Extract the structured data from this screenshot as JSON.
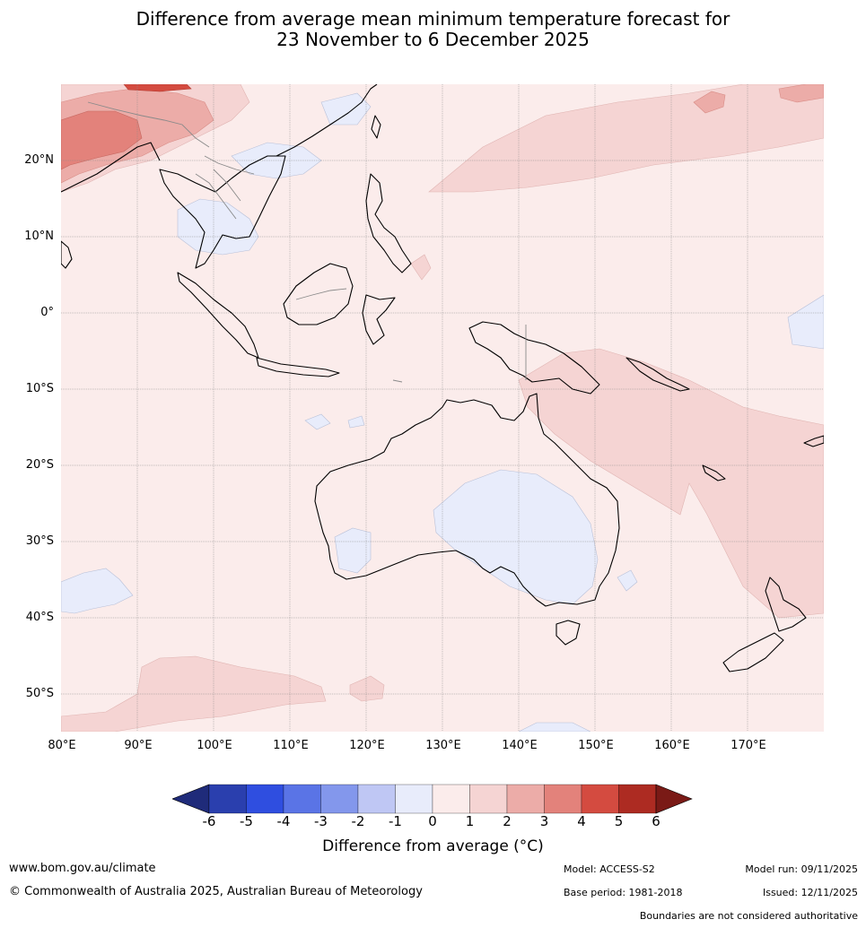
{
  "title_line1": "Difference from average mean minimum temperature forecast for",
  "title_line2": "23 November to 6 December 2025",
  "map": {
    "lat_labels": [
      "20°N",
      "10°N",
      "0°",
      "10°S",
      "20°S",
      "30°S",
      "40°S",
      "50°S"
    ],
    "lon_labels": [
      "80°E",
      "90°E",
      "100°E",
      "110°E",
      "120°E",
      "130°E",
      "140°E",
      "150°E",
      "160°E",
      "170°E"
    ],
    "lon_range": [
      80,
      180
    ],
    "lat_range": [
      -55,
      30
    ],
    "colors": {
      "land_outline": "#000000",
      "border": "#8a8a8a",
      "grid": "#888888",
      "bin_0_1": "#fbeceb",
      "bin_1_2": "#f5d4d3",
      "bin_2_3": "#ecaca8",
      "bin_3_4": "#e3827b",
      "bin_4_5": "#d44b40",
      "bin_m1_0": "#e8ecfb"
    }
  },
  "colorbar": {
    "ticks": [
      "-6",
      "-5",
      "-4",
      "-3",
      "-2",
      "-1",
      "0",
      "1",
      "2",
      "3",
      "4",
      "5",
      "6"
    ],
    "colors": [
      "#1f2b7a",
      "#2a3fae",
      "#2f4ee0",
      "#5a74e6",
      "#8397ec",
      "#bfc7f4",
      "#e8ecfb",
      "#fbeceb",
      "#f5d4d3",
      "#ecaca8",
      "#e3827b",
      "#d44b40",
      "#ad2b22",
      "#7a1a16"
    ],
    "label": "Difference from average (°C)"
  },
  "footer": {
    "website": "www.bom.gov.au/climate",
    "copyright": "© Commonwealth of Australia 2025, Australian Bureau of Meteorology",
    "model": "Model: ACCESS-S2",
    "base_period": "Base period: 1981-2018",
    "model_run": "Model run: 09/11/2025",
    "issued": "Issued: 12/11/2025",
    "disclaimer": "Boundaries are not considered authoritative"
  }
}
